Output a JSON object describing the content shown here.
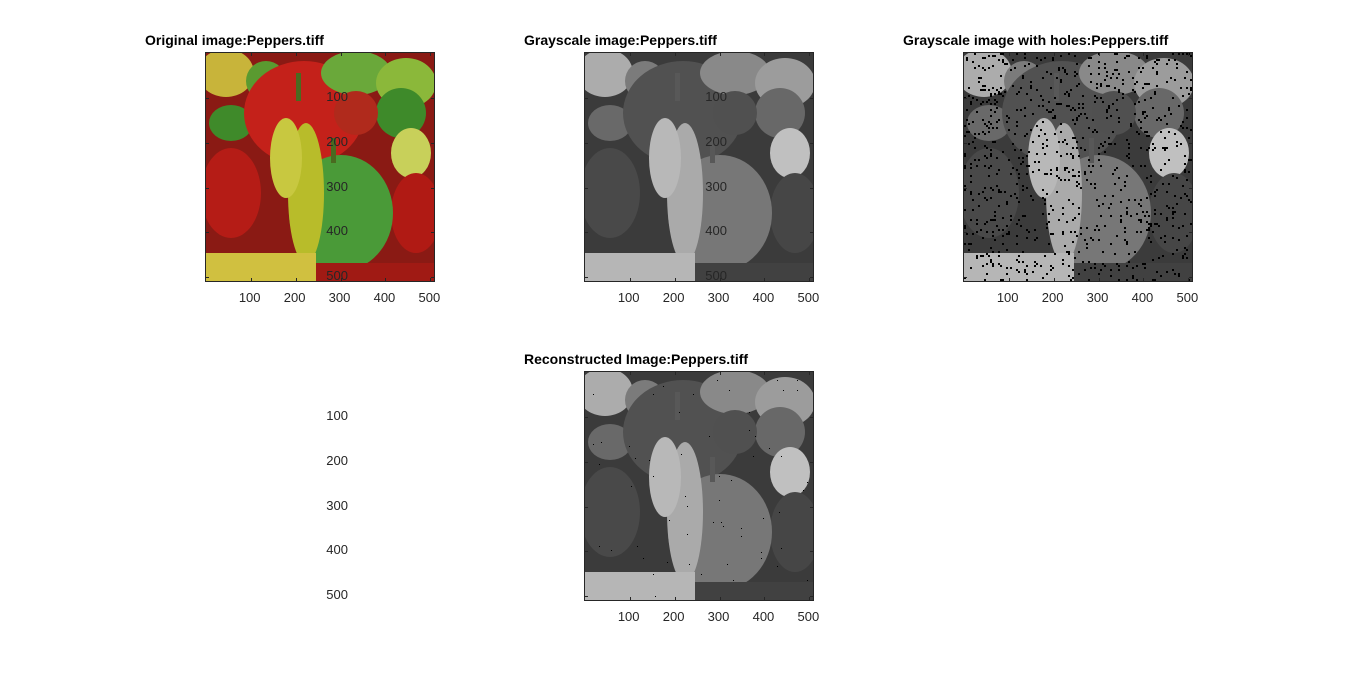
{
  "figure": {
    "panels": [
      {
        "id": "p1",
        "title": "Original image:Peppers.tiff",
        "kind": "color"
      },
      {
        "id": "p2",
        "title": "Grayscale image:Peppers.tiff",
        "kind": "gray"
      },
      {
        "id": "p3",
        "title": "Grayscale image with holes:Peppers.tiff",
        "kind": "holes"
      },
      {
        "id": "p4",
        "title": "Reconstructed Image:Peppers.tiff",
        "kind": "recon"
      }
    ],
    "xticks": [
      "100",
      "200",
      "300",
      "400",
      "500"
    ],
    "yticks": [
      "100",
      "200",
      "300",
      "400",
      "500"
    ],
    "colors": {
      "axis": "#262626",
      "background": "#ffffff"
    }
  }
}
